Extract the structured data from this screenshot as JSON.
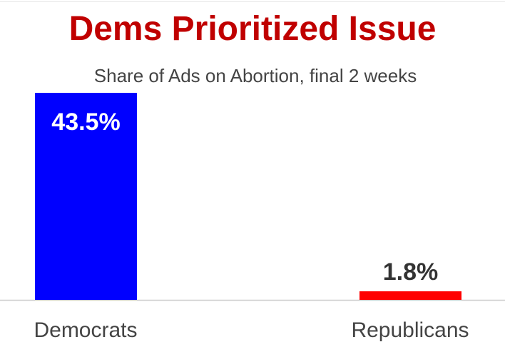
{
  "chart_data": {
    "type": "bar",
    "title": "Dems Prioritized Issue",
    "subtitle": "Share of Ads on Abortion, final 2 weeks",
    "categories": [
      "Democrats",
      "Republicans"
    ],
    "values": [
      43.5,
      1.8
    ],
    "value_labels": [
      "43.5%",
      "1.8%"
    ],
    "bar_colors": [
      "#0000ff",
      "#ff0000"
    ],
    "value_label_colors": [
      "#ffffff",
      "#333333"
    ],
    "ylim": [
      0,
      43.5
    ],
    "grid": false,
    "legend": "none",
    "xlabel": "",
    "ylabel": ""
  },
  "colors": {
    "title": "#c00000",
    "subtitle": "#444444",
    "axis": "#cccccc"
  }
}
